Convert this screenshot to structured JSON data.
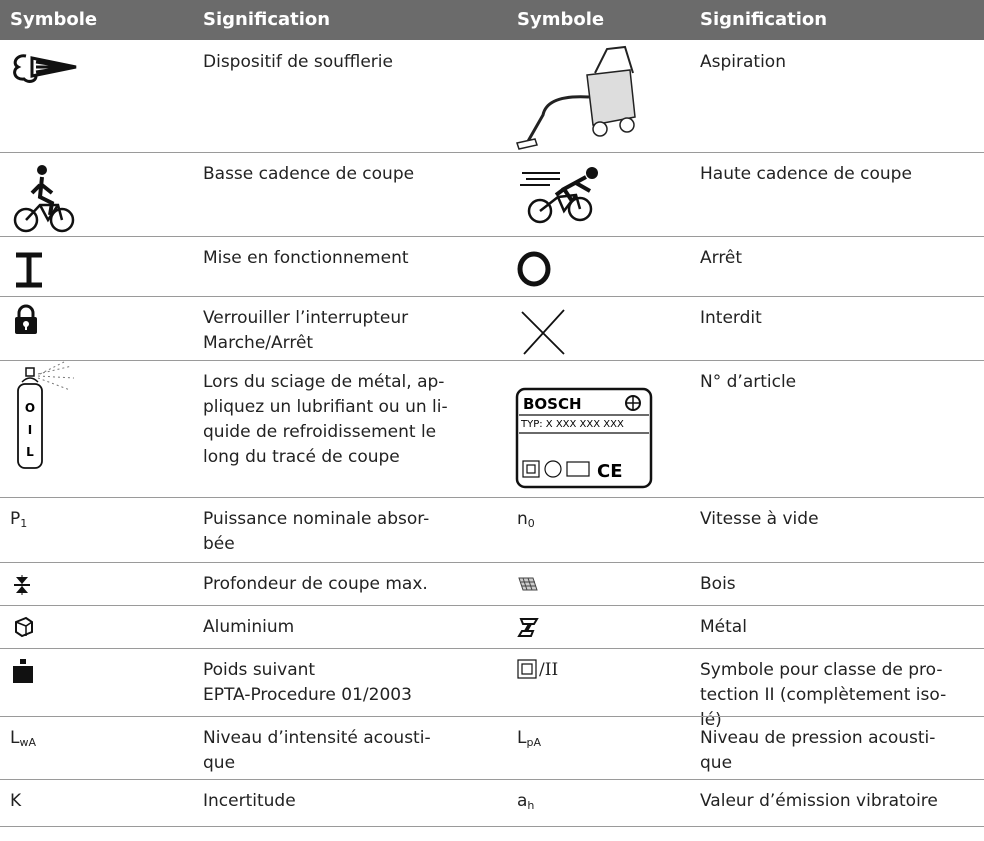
{
  "table": {
    "header": [
      "Symbole",
      "Signification",
      "Symbole",
      "Signification"
    ],
    "rows": [
      {
        "left": {
          "meaning": [
            "Dispositif de soufflerie"
          ]
        },
        "right": {
          "meaning": [
            "Aspiration"
          ]
        }
      },
      {
        "left": {
          "meaning": [
            "Basse cadence de coupe"
          ]
        },
        "right": {
          "meaning": [
            "Haute cadence de coupe"
          ]
        }
      },
      {
        "left": {
          "meaning": [
            "Mise en fonctionnement"
          ]
        },
        "right": {
          "meaning": [
            "Arrêt"
          ]
        }
      },
      {
        "left": {
          "meaning": [
            "Verrouiller l’interrupteur",
            "Marche/Arrêt"
          ]
        },
        "right": {
          "meaning": [
            "Interdit"
          ]
        }
      },
      {
        "left": {
          "meaning": [
            "Lors du sciage de métal, ap-",
            "pliquez un lubrifiant ou un li-",
            "quide de refroidissement le",
            "long du tracé de coupe"
          ],
          "icon_text": [
            "O",
            "I",
            "L"
          ]
        },
        "right": {
          "meaning": [
            "N° d’article"
          ],
          "icon_text": [
            "BOSCH",
            "TYP:  X XXX XXX XXX",
            "CE"
          ]
        }
      },
      {
        "left": {
          "symbol": "P",
          "sub": "1",
          "meaning": [
            "Puissance nominale absor-",
            "bée"
          ]
        },
        "right": {
          "symbol": "n",
          "sub": "0",
          "meaning": [
            "Vitesse à vide"
          ]
        }
      },
      {
        "left": {
          "meaning": [
            "Profondeur de coupe max."
          ]
        },
        "right": {
          "meaning": [
            "Bois"
          ]
        }
      },
      {
        "left": {
          "meaning": [
            "Aluminium"
          ]
        },
        "right": {
          "meaning": [
            "Métal"
          ]
        }
      },
      {
        "left": {
          "meaning": [
            "Poids suivant",
            "EPTA-Procedure 01/2003"
          ]
        },
        "right": {
          "symbol": "/II",
          "meaning": [
            "Symbole pour classe de pro-",
            "tection II (complètement iso-",
            "lé)"
          ]
        }
      },
      {
        "left": {
          "symbol": "L",
          "sub": "wA",
          "meaning": [
            "Niveau d’intensité acousti-",
            "que"
          ]
        },
        "right": {
          "symbol": "L",
          "sub": "pA",
          "meaning": [
            "Niveau de pression acousti-",
            "que"
          ]
        }
      },
      {
        "left": {
          "symbol": "K",
          "meaning": [
            "Incertitude"
          ]
        },
        "right": {
          "symbol": "a",
          "sub": "h",
          "meaning": [
            "Valeur d’émission vibratoire"
          ]
        }
      }
    ]
  }
}
